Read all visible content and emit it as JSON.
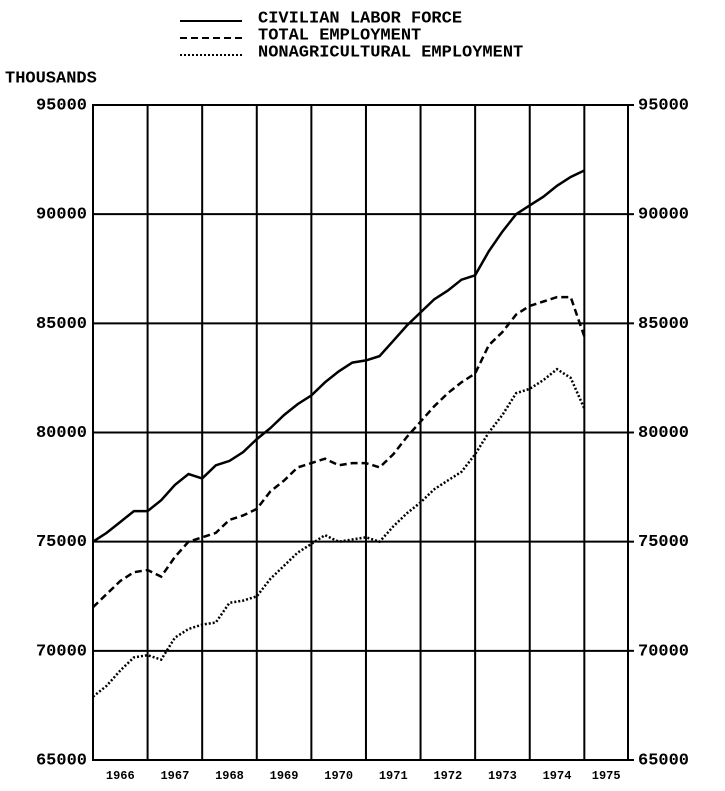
{
  "chart_data": {
    "type": "line",
    "y_axis_label": "THOUSANDS",
    "x": [
      1966,
      1966.25,
      1966.5,
      1966.75,
      1967,
      1967.25,
      1967.5,
      1967.75,
      1968,
      1968.25,
      1968.5,
      1968.75,
      1969,
      1969.25,
      1969.5,
      1969.75,
      1970,
      1970.25,
      1970.5,
      1970.75,
      1971,
      1971.25,
      1971.5,
      1971.75,
      1972,
      1972.25,
      1972.5,
      1972.75,
      1973,
      1973.25,
      1973.5,
      1973.75,
      1974,
      1974.25,
      1974.5,
      1974.75,
      1975
    ],
    "series": [
      {
        "name": "CIVILIAN LABOR FORCE",
        "color": "#000000",
        "dash": "solid",
        "values": [
          75000,
          75400,
          75900,
          76400,
          76400,
          76900,
          77600,
          78100,
          77900,
          78500,
          78700,
          79100,
          79700,
          80200,
          80800,
          81300,
          81700,
          82300,
          82800,
          83200,
          83300,
          83500,
          84200,
          84900,
          85500,
          86100,
          86500,
          87000,
          87200,
          88300,
          89200,
          90000,
          90400,
          90800,
          91300,
          91700,
          92000
        ]
      },
      {
        "name": "TOTAL EMPLOYMENT",
        "color": "#000000",
        "dash": "dashed",
        "values": [
          72000,
          72600,
          73200,
          73600,
          73700,
          73400,
          74300,
          75000,
          75200,
          75400,
          76000,
          76200,
          76500,
          77300,
          77800,
          78400,
          78600,
          78800,
          78500,
          78600,
          78600,
          78400,
          79000,
          79800,
          80500,
          81200,
          81800,
          82300,
          82700,
          84000,
          84600,
          85400,
          85800,
          86000,
          86200,
          86200,
          84400
        ]
      },
      {
        "name": "NONAGRICULTURAL EMPLOYMENT",
        "color": "#000000",
        "dash": "dotted",
        "values": [
          67900,
          68400,
          69100,
          69700,
          69800,
          69600,
          70600,
          71000,
          71200,
          71300,
          72200,
          72300,
          72500,
          73300,
          73900,
          74500,
          74900,
          75300,
          75000,
          75100,
          75200,
          75000,
          75700,
          76300,
          76800,
          77400,
          77800,
          78200,
          79000,
          80000,
          80800,
          81800,
          82000,
          82400,
          82900,
          82500,
          81100
        ]
      }
    ],
    "xlim": [
      1966,
      1975.8
    ],
    "xticks": [
      {
        "value": 1966,
        "label": "1966"
      },
      {
        "value": 1967,
        "label": "1967"
      },
      {
        "value": 1968,
        "label": "1968"
      },
      {
        "value": 1969,
        "label": "1969"
      },
      {
        "value": 1970,
        "label": "1970"
      },
      {
        "value": 1971,
        "label": "1971"
      },
      {
        "value": 1972,
        "label": "1972"
      },
      {
        "value": 1973,
        "label": "1973"
      },
      {
        "value": 1974,
        "label": "1974"
      },
      {
        "value": 1975,
        "label": "1975"
      }
    ],
    "ylim": [
      65000,
      95000
    ],
    "yticks": [
      65000,
      70000,
      75000,
      80000,
      85000,
      90000,
      95000
    ],
    "y2lim": [
      65000,
      95000
    ],
    "y2ticks": [
      65000,
      70000,
      75000,
      80000,
      85000,
      90000,
      95000
    ],
    "grid": true
  }
}
